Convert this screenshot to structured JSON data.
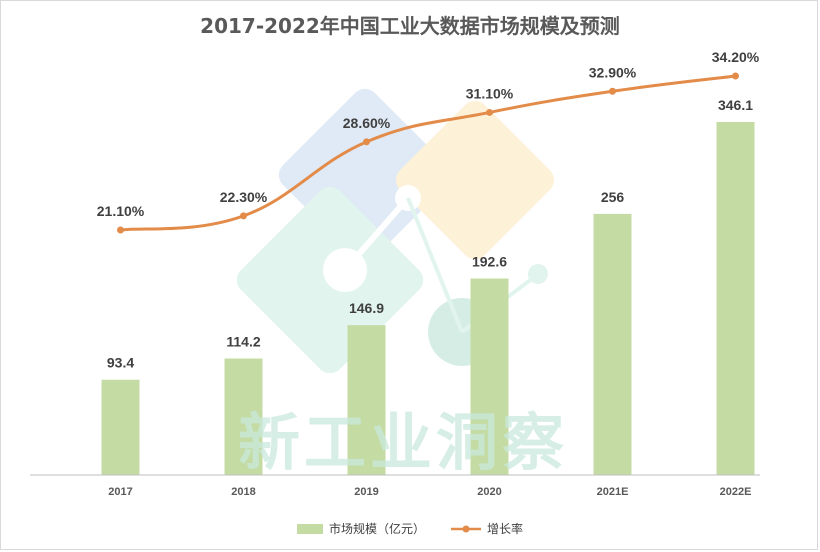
{
  "chart_data": {
    "type": "bar",
    "title": "2017-2022年中国工业大数据市场规模及预测",
    "categories": [
      "2017",
      "2018",
      "2019",
      "2020",
      "2021E",
      "2022E"
    ],
    "series": [
      {
        "name": "市场规模（亿元）",
        "type": "bar",
        "values": [
          93.4,
          114.2,
          146.9,
          192.6,
          256,
          346.1
        ],
        "labels": [
          "93.4",
          "114.2",
          "146.9",
          "192.6",
          "256",
          "346.1"
        ]
      },
      {
        "name": "增长率",
        "type": "line",
        "values": [
          21.1,
          22.3,
          28.6,
          31.1,
          32.9,
          34.2
        ],
        "labels": [
          "21.10%",
          "22.30%",
          "28.60%",
          "31.10%",
          "32.90%",
          "34.20%"
        ]
      }
    ],
    "legend": {
      "position": "bottom"
    },
    "grid": false,
    "colors": {
      "bar": "#c5dba4",
      "line": "#e38b49"
    }
  },
  "watermark": {
    "text": "新工业洞察",
    "colors": [
      "#c8d9ef",
      "#fde9b9",
      "#c9ece0"
    ]
  }
}
